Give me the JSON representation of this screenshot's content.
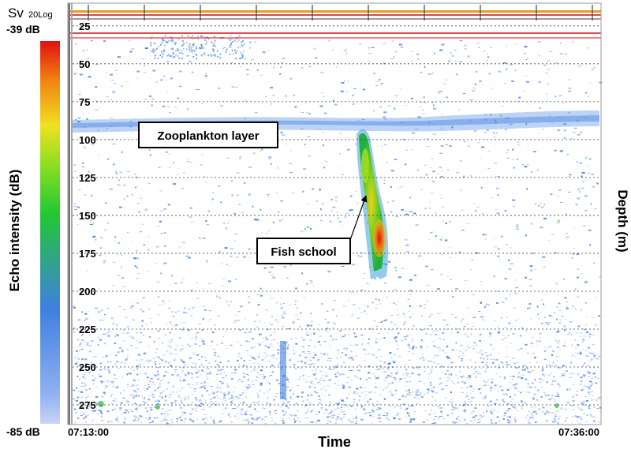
{
  "chart_data": {
    "type": "heatmap",
    "title": "",
    "xlabel": "Time",
    "ylabel": "Depth (m)",
    "x_range": [
      "07:13:00",
      "07:36:00"
    ],
    "x_tick_labels": [
      "07:13:00",
      "07:36:00"
    ],
    "y_range": [
      10,
      288
    ],
    "y_inverted": true,
    "y_ticks": [
      25,
      50,
      75,
      100,
      125,
      150,
      175,
      200,
      225,
      250,
      275
    ],
    "grid": true,
    "colorbar": {
      "label": "Echo intensity (dB)",
      "header_main": "Sv",
      "header_sub": "20Log",
      "max_label": "-39 dB",
      "min_label": "-85 dB",
      "min": -85,
      "max": -39
    },
    "features": [
      {
        "name": "Zooplankton layer",
        "depth_m": 85,
        "sv_db": -70
      },
      {
        "name": "Fish school",
        "depth_m": [
          88,
          188
        ],
        "time_range": [
          "07:26:40",
          "07:28:00"
        ],
        "peak_sv_db": -42
      }
    ],
    "annotations": [
      {
        "text": "Zooplankton layer",
        "target": "Zooplankton layer"
      },
      {
        "text": "Fish school",
        "target": "Fish school"
      }
    ]
  },
  "colors": {
    "background": "#ffffff",
    "echo_low": "#3f7fe0",
    "echo_mid": "#22cc22",
    "echo_high": "#e02010",
    "surface_line": "#cc1111",
    "grid": "#444444"
  }
}
